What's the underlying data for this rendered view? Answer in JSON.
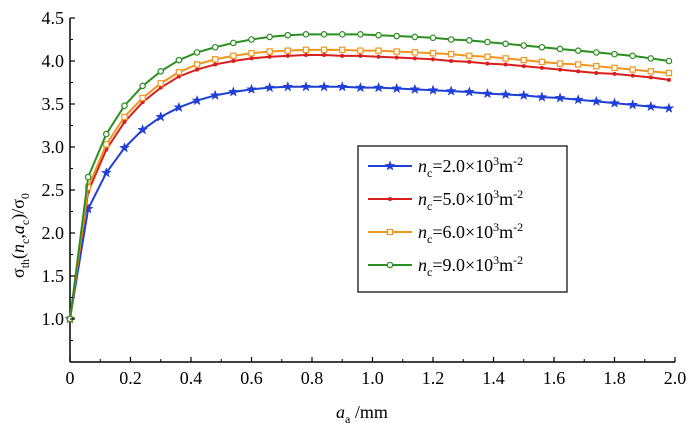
{
  "chart_data": {
    "type": "line",
    "title": "",
    "xlabel": {
      "base": "a",
      "sub": "a",
      "unit": " /mm"
    },
    "ylabel": {
      "parts": [
        {
          "t": "σ",
          "style": "normal"
        },
        {
          "t": "th",
          "style": "sub"
        },
        {
          "t": "(",
          "style": "normal"
        },
        {
          "t": "n",
          "style": "italic"
        },
        {
          "t": "c",
          "style": "sub"
        },
        {
          "t": ",",
          "style": "normal"
        },
        {
          "t": "a",
          "style": "italic"
        },
        {
          "t": "c",
          "style": "sub"
        },
        {
          "t": ")/σ",
          "style": "normal"
        },
        {
          "t": "0",
          "style": "sub"
        }
      ]
    },
    "xlim": [
      0,
      2.0
    ],
    "ylim": [
      0.5,
      4.5
    ],
    "xticks": [
      "0",
      "0.2",
      "0.4",
      "0.6",
      "0.8",
      "1.0",
      "1.2",
      "1.4",
      "1.6",
      "1.8",
      "2.0"
    ],
    "yticks": [
      "1.0",
      "1.5",
      "2.0",
      "2.5",
      "3.0",
      "3.5",
      "4.0",
      "4.5"
    ],
    "grid": false,
    "legend_position": "center-right",
    "x": [
      0,
      0.06,
      0.12,
      0.18,
      0.24,
      0.3,
      0.36,
      0.42,
      0.48,
      0.54,
      0.6,
      0.66,
      0.72,
      0.78,
      0.84,
      0.9,
      0.96,
      1.02,
      1.08,
      1.14,
      1.2,
      1.26,
      1.32,
      1.38,
      1.44,
      1.5,
      1.56,
      1.62,
      1.68,
      1.74,
      1.8,
      1.86,
      1.92,
      1.98
    ],
    "series": [
      {
        "label": {
          "n": "n",
          "sub": "c",
          "eq": "=2.0×10",
          "sup": "3",
          "unit": "m",
          "unitsup": "-2"
        },
        "color": "#1f3fd6",
        "marker": "star",
        "values": [
          1.0,
          2.28,
          2.7,
          2.99,
          3.2,
          3.35,
          3.46,
          3.54,
          3.6,
          3.64,
          3.67,
          3.69,
          3.7,
          3.7,
          3.7,
          3.7,
          3.69,
          3.69,
          3.68,
          3.67,
          3.66,
          3.65,
          3.64,
          3.62,
          3.61,
          3.6,
          3.58,
          3.57,
          3.55,
          3.53,
          3.51,
          3.49,
          3.47,
          3.45
        ]
      },
      {
        "label": {
          "n": "n",
          "sub": "c",
          "eq": "=5.0×10",
          "sup": "3",
          "unit": "m",
          "unitsup": "-2"
        },
        "color": "#d81e1e",
        "marker": "dot",
        "values": [
          1.0,
          2.48,
          2.97,
          3.29,
          3.52,
          3.69,
          3.82,
          3.9,
          3.96,
          4.0,
          4.03,
          4.05,
          4.06,
          4.07,
          4.07,
          4.06,
          4.06,
          4.05,
          4.04,
          4.03,
          4.02,
          4.0,
          3.99,
          3.97,
          3.96,
          3.94,
          3.92,
          3.9,
          3.88,
          3.86,
          3.85,
          3.83,
          3.81,
          3.78
        ]
      },
      {
        "label": {
          "n": "n",
          "sub": "c",
          "eq": "=6.0×10",
          "sup": "3",
          "unit": "m",
          "unitsup": "-2"
        },
        "color": "#f0951d",
        "marker": "square",
        "values": [
          1.0,
          2.53,
          3.03,
          3.35,
          3.57,
          3.74,
          3.87,
          3.96,
          4.02,
          4.06,
          4.09,
          4.11,
          4.12,
          4.13,
          4.13,
          4.13,
          4.12,
          4.12,
          4.11,
          4.1,
          4.09,
          4.08,
          4.06,
          4.05,
          4.03,
          4.01,
          3.99,
          3.97,
          3.96,
          3.94,
          3.92,
          3.9,
          3.88,
          3.86
        ]
      },
      {
        "label": {
          "n": "n",
          "sub": "c",
          "eq": "=9.0×10",
          "sup": "3",
          "unit": "m",
          "unitsup": "-2"
        },
        "color": "#2b8f20",
        "marker": "circle",
        "values": [
          1.0,
          2.65,
          3.15,
          3.48,
          3.71,
          3.88,
          4.01,
          4.1,
          4.16,
          4.21,
          4.25,
          4.28,
          4.3,
          4.31,
          4.31,
          4.31,
          4.31,
          4.3,
          4.29,
          4.28,
          4.27,
          4.25,
          4.24,
          4.22,
          4.2,
          4.18,
          4.16,
          4.14,
          4.12,
          4.1,
          4.08,
          4.06,
          4.03,
          4.0
        ]
      }
    ]
  }
}
